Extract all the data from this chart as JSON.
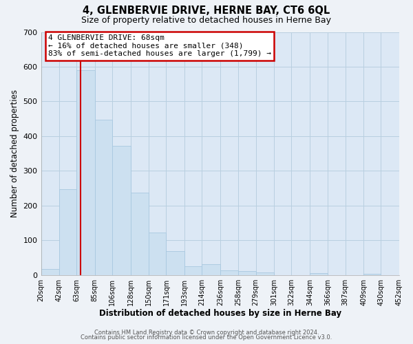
{
  "title": "4, GLENBERVIE DRIVE, HERNE BAY, CT6 6QL",
  "subtitle": "Size of property relative to detached houses in Herne Bay",
  "xlabel": "Distribution of detached houses by size in Herne Bay",
  "ylabel": "Number of detached properties",
  "bar_color": "#cce0f0",
  "bar_edge_color": "#a8c8e0",
  "bin_edges": [
    20,
    42,
    63,
    85,
    106,
    128,
    150,
    171,
    193,
    214,
    236,
    258,
    279,
    301,
    322,
    344,
    366,
    387,
    409,
    430,
    452
  ],
  "bar_heights": [
    18,
    248,
    590,
    448,
    372,
    238,
    122,
    68,
    25,
    31,
    13,
    11,
    8,
    0,
    0,
    5,
    0,
    0,
    4,
    0
  ],
  "tick_labels": [
    "20sqm",
    "42sqm",
    "63sqm",
    "85sqm",
    "106sqm",
    "128sqm",
    "150sqm",
    "171sqm",
    "193sqm",
    "214sqm",
    "236sqm",
    "258sqm",
    "279sqm",
    "301sqm",
    "322sqm",
    "344sqm",
    "366sqm",
    "387sqm",
    "409sqm",
    "430sqm",
    "452sqm"
  ],
  "ylim": [
    0,
    700
  ],
  "yticks": [
    0,
    100,
    200,
    300,
    400,
    500,
    600,
    700
  ],
  "property_line_x": 68,
  "annotation_line1": "4 GLENBERVIE DRIVE: 68sqm",
  "annotation_line2": "← 16% of detached houses are smaller (348)",
  "annotation_line3": "83% of semi-detached houses are larger (1,799) →",
  "annotation_box_color": "white",
  "annotation_box_edge_color": "#cc0000",
  "red_line_color": "#cc0000",
  "footer_line1": "Contains HM Land Registry data © Crown copyright and database right 2024.",
  "footer_line2": "Contains public sector information licensed under the Open Government Licence v3.0.",
  "background_color": "#eef2f7",
  "plot_bg_color": "#dce8f5",
  "grid_color": "#b8cfe0"
}
